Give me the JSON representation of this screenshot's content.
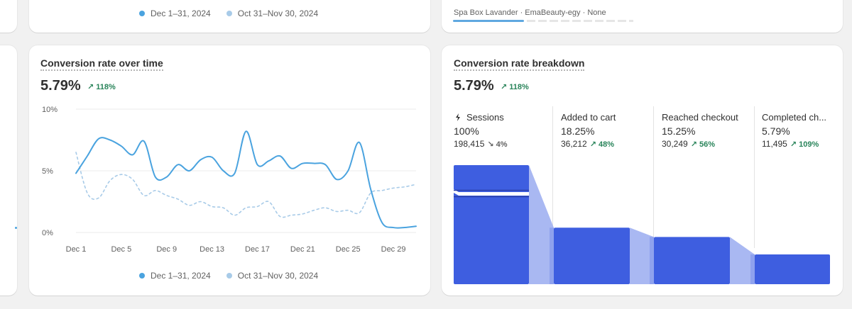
{
  "top_left_card": {
    "legend": [
      {
        "label": "Dec 1–31, 2024",
        "color": "#4aa3df"
      },
      {
        "label": "Oct 31–Nov 30, 2024",
        "color": "#a8cbe8"
      }
    ]
  },
  "top_right_card": {
    "product_line": "Spa Box Lavander · EmaBeauty-egy · None"
  },
  "conversion_over_time": {
    "title": "Conversion rate over time",
    "value": "5.79%",
    "delta": "↗ 118%",
    "legend": [
      {
        "label": "Dec 1–31, 2024",
        "color": "#4aa3df"
      },
      {
        "label": "Oct 31–Nov 30, 2024",
        "color": "#a8cbe8"
      }
    ],
    "chart_data": {
      "type": "line",
      "y_ticks": [
        "10%",
        "5%",
        "0%"
      ],
      "ylim": [
        0,
        10
      ],
      "x_ticks": [
        "Dec 1",
        "Dec 5",
        "Dec 9",
        "Dec 13",
        "Dec 17",
        "Dec 21",
        "Dec 25",
        "Dec 29"
      ],
      "x": [
        1,
        2,
        3,
        4,
        5,
        6,
        7,
        8,
        9,
        10,
        11,
        12,
        13,
        14,
        15,
        16,
        17,
        18,
        19,
        20,
        21,
        22,
        23,
        24,
        25,
        26,
        27,
        28,
        29,
        30,
        31
      ],
      "series": [
        {
          "name": "Dec 1–31, 2024",
          "color": "#4aa3df",
          "style": "solid",
          "values": [
            4.8,
            6.2,
            7.6,
            7.5,
            7.0,
            6.3,
            7.4,
            4.5,
            4.5,
            5.5,
            5.0,
            5.9,
            6.1,
            5.0,
            4.8,
            8.2,
            5.5,
            5.8,
            6.2,
            5.2,
            5.6,
            5.6,
            5.5,
            4.3,
            5.0,
            7.3,
            3.5,
            0.8,
            0.4,
            0.4,
            0.5
          ]
        },
        {
          "name": "Oct 31–Nov 30, 2024",
          "color": "#a8cbe8",
          "style": "dashed",
          "values": [
            6.5,
            3.2,
            2.8,
            4.2,
            4.7,
            4.3,
            3.0,
            3.4,
            3.0,
            2.7,
            2.2,
            2.5,
            2.1,
            2.0,
            1.4,
            2.0,
            2.1,
            2.5,
            1.3,
            1.4,
            1.5,
            1.8,
            2.0,
            1.7,
            1.8,
            1.6,
            3.2,
            3.4,
            3.6,
            3.7,
            3.9
          ]
        }
      ]
    }
  },
  "conversion_breakdown": {
    "title": "Conversion rate breakdown",
    "value": "5.79%",
    "delta": "↗ 118%",
    "chart_data": {
      "type": "bar",
      "categories": [
        "Sessions",
        "Added to cart",
        "Reached checkout",
        "Completed ch..."
      ],
      "values": [
        100,
        18.25,
        15.25,
        5.79
      ],
      "ylim": [
        0,
        100
      ],
      "bar_color": "#3e5ee0",
      "flow_color": "#a9b8f2"
    },
    "stages": [
      {
        "name": "Sessions",
        "pct": "100%",
        "count": "198,415",
        "change": "↘ 4%",
        "direction": "down"
      },
      {
        "name": "Added to cart",
        "pct": "18.25%",
        "count": "36,212",
        "change": "↗ 48%",
        "direction": "up"
      },
      {
        "name": "Reached checkout",
        "pct": "15.25%",
        "count": "30,249",
        "change": "↗ 56%",
        "direction": "up"
      },
      {
        "name": "Completed ch...",
        "pct": "5.79%",
        "count": "11,495",
        "change": "↗ 109%",
        "direction": "up"
      }
    ]
  }
}
